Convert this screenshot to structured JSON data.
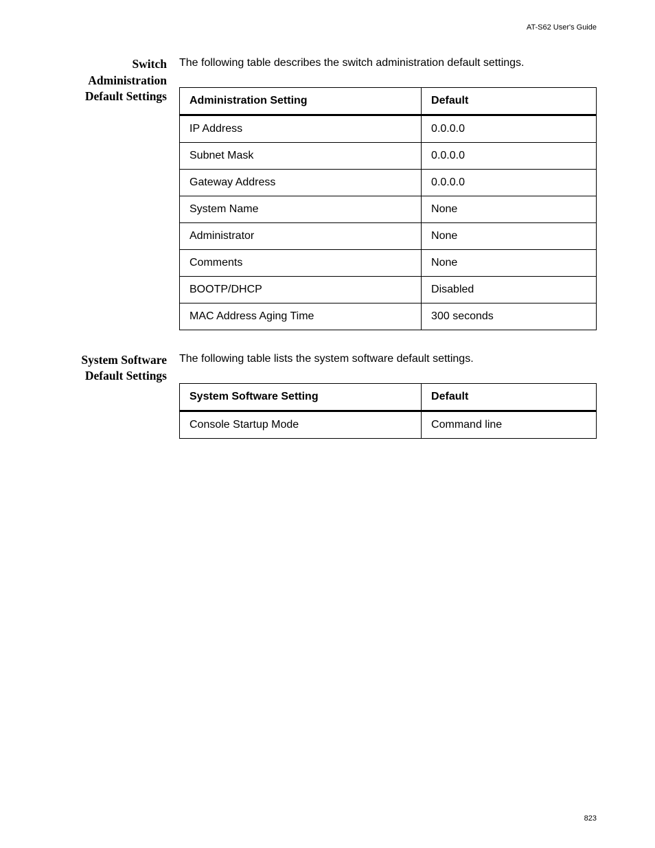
{
  "header": {
    "guide_title": "AT-S62 User's Guide"
  },
  "sections": [
    {
      "heading": "Switch Administration Default Settings",
      "intro": "The following table describes the switch administration default settings.",
      "table": {
        "headers": [
          "Administration Setting",
          "Default"
        ],
        "rows": [
          [
            "IP Address",
            "0.0.0.0"
          ],
          [
            "Subnet Mask",
            "0.0.0.0"
          ],
          [
            "Gateway Address",
            "0.0.0.0"
          ],
          [
            "System Name",
            "None"
          ],
          [
            "Administrator",
            "None"
          ],
          [
            "Comments",
            "None"
          ],
          [
            "BOOTP/DHCP",
            "Disabled"
          ],
          [
            "MAC Address Aging Time",
            "300 seconds"
          ]
        ]
      }
    },
    {
      "heading": "System Software Default Settings",
      "intro": "The following table lists the system software default settings.",
      "table": {
        "headers": [
          "System Software Setting",
          "Default"
        ],
        "rows": [
          [
            "Console Startup Mode",
            "Command line"
          ]
        ]
      }
    }
  ],
  "footer": {
    "page_number": "823"
  }
}
